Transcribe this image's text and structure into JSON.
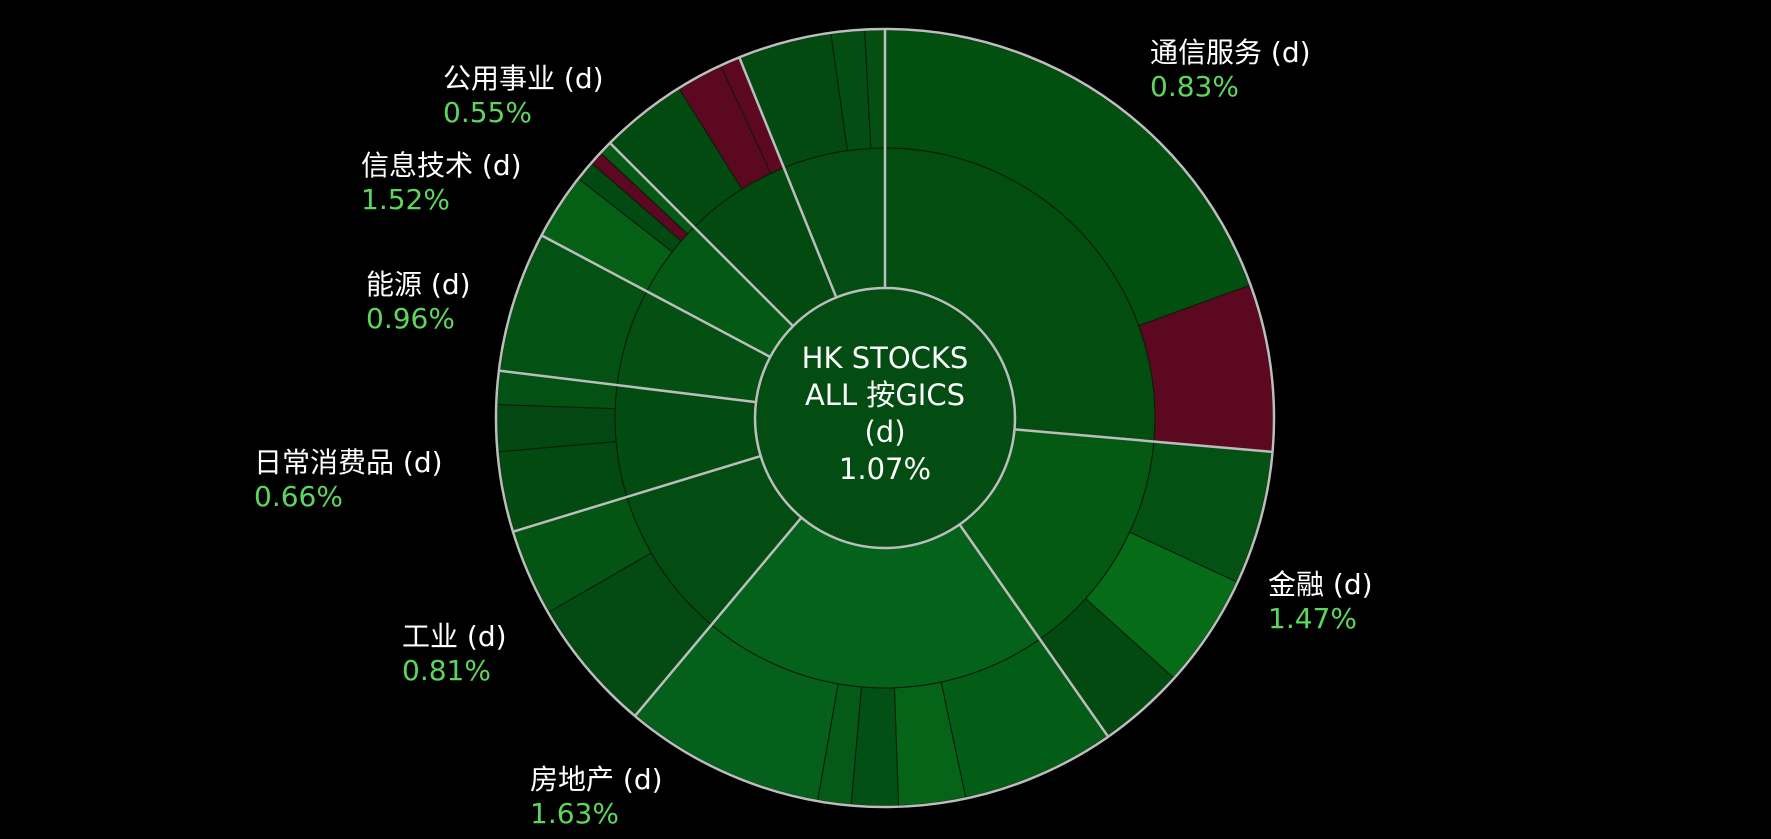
{
  "colors": {
    "background": "#000000",
    "gain": "#5cd65c",
    "loss_fill": "#5c0820",
    "outline": "#bdbdbd"
  },
  "chart_data": {
    "type": "sunburst",
    "center": {
      "line1": "HK STOCKS",
      "line2": "ALL 按GICS",
      "line3": "(d)",
      "value": "1.07%"
    },
    "sectors": [
      {
        "name": "通信服务 (d)",
        "change": "0.83%",
        "start": 0,
        "end": 95,
        "color": "#024d10",
        "sub": [
          {
            "s": 0,
            "e": 70,
            "c": "#02500f"
          },
          {
            "s": 70,
            "e": 95,
            "c": "#5c0820"
          }
        ]
      },
      {
        "name": "金融 (d)",
        "change": "1.47%",
        "start": 95,
        "end": 145,
        "color": "#045a12",
        "sub": [
          {
            "s": 95,
            "e": 115,
            "c": "#035213"
          },
          {
            "s": 115,
            "e": 132,
            "c": "#066c18"
          },
          {
            "s": 132,
            "e": 145,
            "c": "#034a10"
          }
        ]
      },
      {
        "name": "房地产 (d)",
        "change": "1.63%",
        "start": 145,
        "end": 220,
        "color": "#05621a",
        "sub": [
          {
            "s": 145,
            "e": 168,
            "c": "#045d16"
          },
          {
            "s": 168,
            "e": 178,
            "c": "#056418"
          },
          {
            "s": 178,
            "e": 185,
            "c": "#035014"
          },
          {
            "s": 185,
            "e": 190,
            "c": "#045a16"
          },
          {
            "s": 190,
            "e": 220,
            "c": "#04601a"
          }
        ]
      },
      {
        "name": "工业 (d)",
        "change": "0.81%",
        "start": 220,
        "end": 253,
        "color": "#034d12",
        "sub": [
          {
            "s": 220,
            "e": 240,
            "c": "#034b12"
          },
          {
            "s": 240,
            "e": 253,
            "c": "#045514"
          }
        ]
      },
      {
        "name": "日常消费品 (d)",
        "change": "0.66%",
        "start": 253,
        "end": 277,
        "color": "#034c11",
        "sub": [
          {
            "s": 253,
            "e": 265,
            "c": "#034a10"
          },
          {
            "s": 265,
            "e": 272,
            "c": "#034812"
          },
          {
            "s": 272,
            "e": 277,
            "c": "#045213"
          }
        ]
      },
      {
        "name": "能源 (d)",
        "change": "0.96%",
        "start": 277,
        "end": 298,
        "color": "#035012",
        "sub": [
          {
            "s": 277,
            "e": 298,
            "c": "#035213"
          }
        ]
      },
      {
        "name": "信息技术 (d)",
        "change": "1.52%",
        "start": 298,
        "end": 315,
        "color": "#045a14",
        "sub": [
          {
            "s": 298,
            "e": 308,
            "c": "#056016"
          },
          {
            "s": 308,
            "e": 311,
            "c": "#034a12"
          },
          {
            "s": 311,
            "e": 313,
            "c": "#5c0820"
          },
          {
            "s": 313,
            "e": 315,
            "c": "#045a14"
          }
        ]
      },
      {
        "name": "公用事业 (d)",
        "change": "0.55%",
        "start": 315,
        "end": 338,
        "color": "#034a10",
        "sub": [
          {
            "s": 315,
            "e": 328,
            "c": "#034a10"
          },
          {
            "s": 328,
            "e": 335,
            "c": "#5c0820"
          },
          {
            "s": 335,
            "e": 338,
            "c": "#5c0820"
          }
        ]
      },
      {
        "name": "",
        "change": "",
        "start": 338,
        "end": 360,
        "color": "#034c12",
        "sub": [
          {
            "s": 338,
            "e": 352,
            "c": "#034a12"
          },
          {
            "s": 352,
            "e": 357,
            "c": "#034e12"
          },
          {
            "s": 357,
            "e": 360,
            "c": "#035012"
          }
        ]
      }
    ]
  },
  "labels": [
    {
      "key": "comm",
      "name": "通信服务 (d)",
      "change": "0.83%"
    },
    {
      "key": "fin",
      "name": "金融 (d)",
      "change": "1.47%"
    },
    {
      "key": "re",
      "name": "房地产 (d)",
      "change": "1.63%"
    },
    {
      "key": "ind",
      "name": "工业 (d)",
      "change": "0.81%"
    },
    {
      "key": "staples",
      "name": "日常消费品 (d)",
      "change": "0.66%"
    },
    {
      "key": "energy",
      "name": "能源 (d)",
      "change": "0.96%"
    },
    {
      "key": "it",
      "name": "信息技术 (d)",
      "change": "1.52%"
    },
    {
      "key": "util",
      "name": "公用事业 (d)",
      "change": "0.55%"
    }
  ]
}
